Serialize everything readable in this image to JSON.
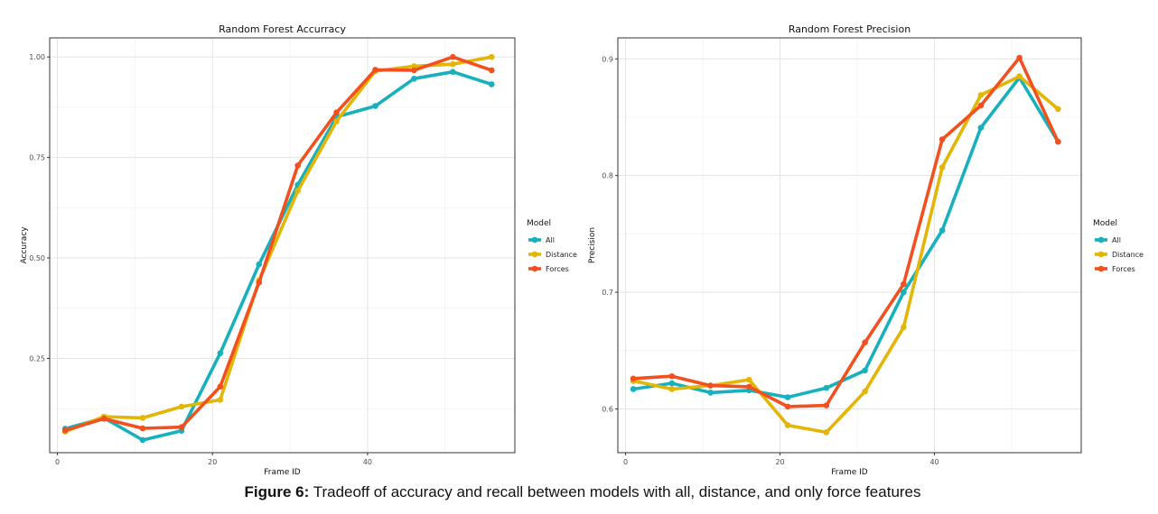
{
  "caption": {
    "label": "Figure 6:",
    "text": "Tradeoff of accuracy and recall between models with all, distance, and only force features"
  },
  "chart_data": [
    {
      "type": "line",
      "title": "Random Forest Accurracy",
      "xlabel": "Frame ID",
      "ylabel": "Accuracy",
      "xlim": [
        -1,
        59
      ],
      "ylim": [
        0.0155,
        1.0475
      ],
      "x_ticks": [
        0,
        20,
        40
      ],
      "y_ticks": [
        0.25,
        0.5,
        0.75,
        1.0
      ],
      "y_tick_labels": [
        "0.25",
        "0.50",
        "0.75",
        "1.00"
      ],
      "grid": true,
      "legend_title": "Model",
      "legend_position": "right",
      "x": [
        1,
        6,
        11,
        16,
        21,
        26,
        31,
        36,
        41,
        46,
        51,
        56
      ],
      "series": [
        {
          "name": "All",
          "color": "#17b1bd",
          "values": [
            0.075,
            0.102,
            0.047,
            0.07,
            0.263,
            0.484,
            0.682,
            0.851,
            0.878,
            0.946,
            0.963,
            0.932
          ]
        },
        {
          "name": "Distance",
          "color": "#e3b505",
          "values": [
            0.068,
            0.105,
            0.102,
            0.13,
            0.147,
            0.444,
            0.667,
            0.84,
            0.965,
            0.977,
            0.982,
            1.0
          ]
        },
        {
          "name": "Forces",
          "color": "#f2501e",
          "values": [
            0.071,
            0.1,
            0.076,
            0.079,
            0.18,
            0.439,
            0.73,
            0.862,
            0.968,
            0.967,
            1.0,
            0.967
          ]
        }
      ]
    },
    {
      "type": "line",
      "title": "Random Forest Precision",
      "xlabel": "Frame ID",
      "ylabel": "Precision",
      "xlim": [
        -1,
        59
      ],
      "ylim": [
        0.5625,
        0.918
      ],
      "x_ticks": [
        0,
        20,
        40
      ],
      "y_ticks": [
        0.6,
        0.7,
        0.8,
        0.9
      ],
      "y_tick_labels": [
        "0.6",
        "0.7",
        "0.8",
        "0.9"
      ],
      "grid": true,
      "legend_title": "Model",
      "legend_position": "right",
      "x": [
        1,
        6,
        11,
        16,
        21,
        26,
        31,
        36,
        41,
        46,
        51,
        56
      ],
      "series": [
        {
          "name": "All",
          "color": "#17b1bd",
          "values": [
            0.617,
            0.622,
            0.614,
            0.616,
            0.61,
            0.618,
            0.633,
            0.7,
            0.753,
            0.841,
            0.884,
            0.829
          ]
        },
        {
          "name": "Distance",
          "color": "#e3b505",
          "values": [
            0.624,
            0.617,
            0.62,
            0.625,
            0.586,
            0.58,
            0.615,
            0.67,
            0.807,
            0.869,
            0.885,
            0.857
          ]
        },
        {
          "name": "Forces",
          "color": "#f2501e",
          "values": [
            0.626,
            0.628,
            0.62,
            0.619,
            0.602,
            0.603,
            0.657,
            0.707,
            0.831,
            0.86,
            0.901,
            0.829
          ]
        }
      ]
    }
  ]
}
